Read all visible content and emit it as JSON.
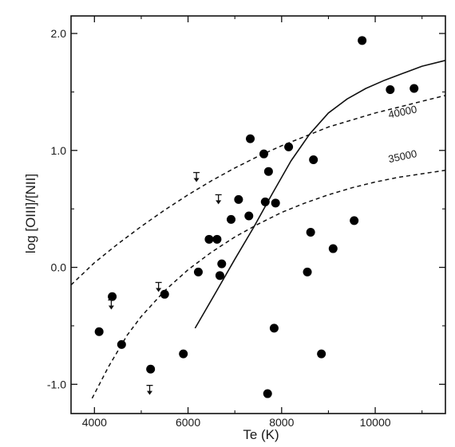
{
  "chart_data": {
    "type": "scatter",
    "title": "",
    "xlabel": "Te (K)",
    "ylabel": "log [OIII]/[NII]",
    "xlim": [
      3500,
      11500
    ],
    "ylim": [
      -1.25,
      2.15
    ],
    "x_ticks": [
      4000,
      6000,
      8000,
      10000
    ],
    "x_tick_labels": [
      "4000",
      "6000",
      "8000",
      "10000"
    ],
    "y_ticks": [
      -1.0,
      0.0,
      1.0,
      2.0
    ],
    "y_tick_labels": [
      "-1.0",
      "0.0",
      "1.0",
      "2.0"
    ],
    "grid": false,
    "points": [
      {
        "x": 4100,
        "y": -0.55
      },
      {
        "x": 4380,
        "y": -0.25
      },
      {
        "x": 4580,
        "y": -0.66
      },
      {
        "x": 5200,
        "y": -0.87
      },
      {
        "x": 5500,
        "y": -0.23
      },
      {
        "x": 5900,
        "y": -0.74
      },
      {
        "x": 6220,
        "y": -0.04
      },
      {
        "x": 6450,
        "y": 0.24
      },
      {
        "x": 6620,
        "y": 0.24
      },
      {
        "x": 6680,
        "y": -0.07
      },
      {
        "x": 6720,
        "y": 0.03
      },
      {
        "x": 6920,
        "y": 0.41
      },
      {
        "x": 7080,
        "y": 0.58
      },
      {
        "x": 7300,
        "y": 0.44
      },
      {
        "x": 7330,
        "y": 1.1
      },
      {
        "x": 7620,
        "y": 0.97
      },
      {
        "x": 7650,
        "y": 0.56
      },
      {
        "x": 7720,
        "y": 0.82
      },
      {
        "x": 7870,
        "y": 0.55
      },
      {
        "x": 7840,
        "y": -0.52
      },
      {
        "x": 7700,
        "y": -1.08
      },
      {
        "x": 8150,
        "y": 1.03
      },
      {
        "x": 8550,
        "y": -0.04
      },
      {
        "x": 8620,
        "y": 0.3
      },
      {
        "x": 8680,
        "y": 0.92
      },
      {
        "x": 8850,
        "y": -0.74
      },
      {
        "x": 9100,
        "y": 0.16
      },
      {
        "x": 9550,
        "y": 0.4
      },
      {
        "x": 9720,
        "y": 1.94
      },
      {
        "x": 10320,
        "y": 1.52
      },
      {
        "x": 10830,
        "y": 1.53
      }
    ],
    "upper_limits": [
      {
        "x": 6180,
        "y": 0.77
      },
      {
        "x": 6650,
        "y": 0.58
      },
      {
        "x": 5370,
        "y": -0.17
      },
      {
        "x": 4360,
        "y": -0.32
      },
      {
        "x": 5180,
        "y": -1.05
      }
    ],
    "series": [
      {
        "name": "40000",
        "style": "dashed",
        "x": [
          3500,
          4000,
          4500,
          5000,
          5500,
          6000,
          6500,
          7000,
          7500,
          8000,
          8500,
          9000,
          9500,
          10000,
          10500,
          11000,
          11500
        ],
        "y": [
          -0.15,
          0.04,
          0.2,
          0.35,
          0.49,
          0.62,
          0.74,
          0.85,
          0.95,
          1.04,
          1.12,
          1.2,
          1.26,
          1.32,
          1.37,
          1.42,
          1.47
        ]
      },
      {
        "name": "35000",
        "style": "dashed",
        "x": [
          3950,
          4300,
          4700,
          5000,
          5500,
          6000,
          6500,
          7000,
          7500,
          8000,
          8500,
          9000,
          9500,
          10000,
          10500,
          11000,
          11500
        ],
        "y": [
          -1.12,
          -0.85,
          -0.58,
          -0.42,
          -0.2,
          -0.02,
          0.13,
          0.26,
          0.37,
          0.47,
          0.55,
          0.62,
          0.68,
          0.73,
          0.77,
          0.8,
          0.83
        ]
      },
      {
        "name": "",
        "style": "solid",
        "x": [
          6150,
          6600,
          7000,
          7400,
          7800,
          8200,
          8600,
          9000,
          9400,
          9800,
          10200,
          10600,
          11000,
          11500
        ],
        "y": [
          -0.52,
          -0.21,
          0.07,
          0.34,
          0.63,
          0.91,
          1.14,
          1.32,
          1.44,
          1.53,
          1.6,
          1.66,
          1.72,
          1.77
        ]
      }
    ],
    "curve_labels": [
      {
        "text": "40000",
        "series": "40000",
        "x": 10600,
        "y": 1.3
      },
      {
        "text": "35000",
        "series": "35000",
        "x": 10600,
        "y": 0.92
      }
    ]
  }
}
